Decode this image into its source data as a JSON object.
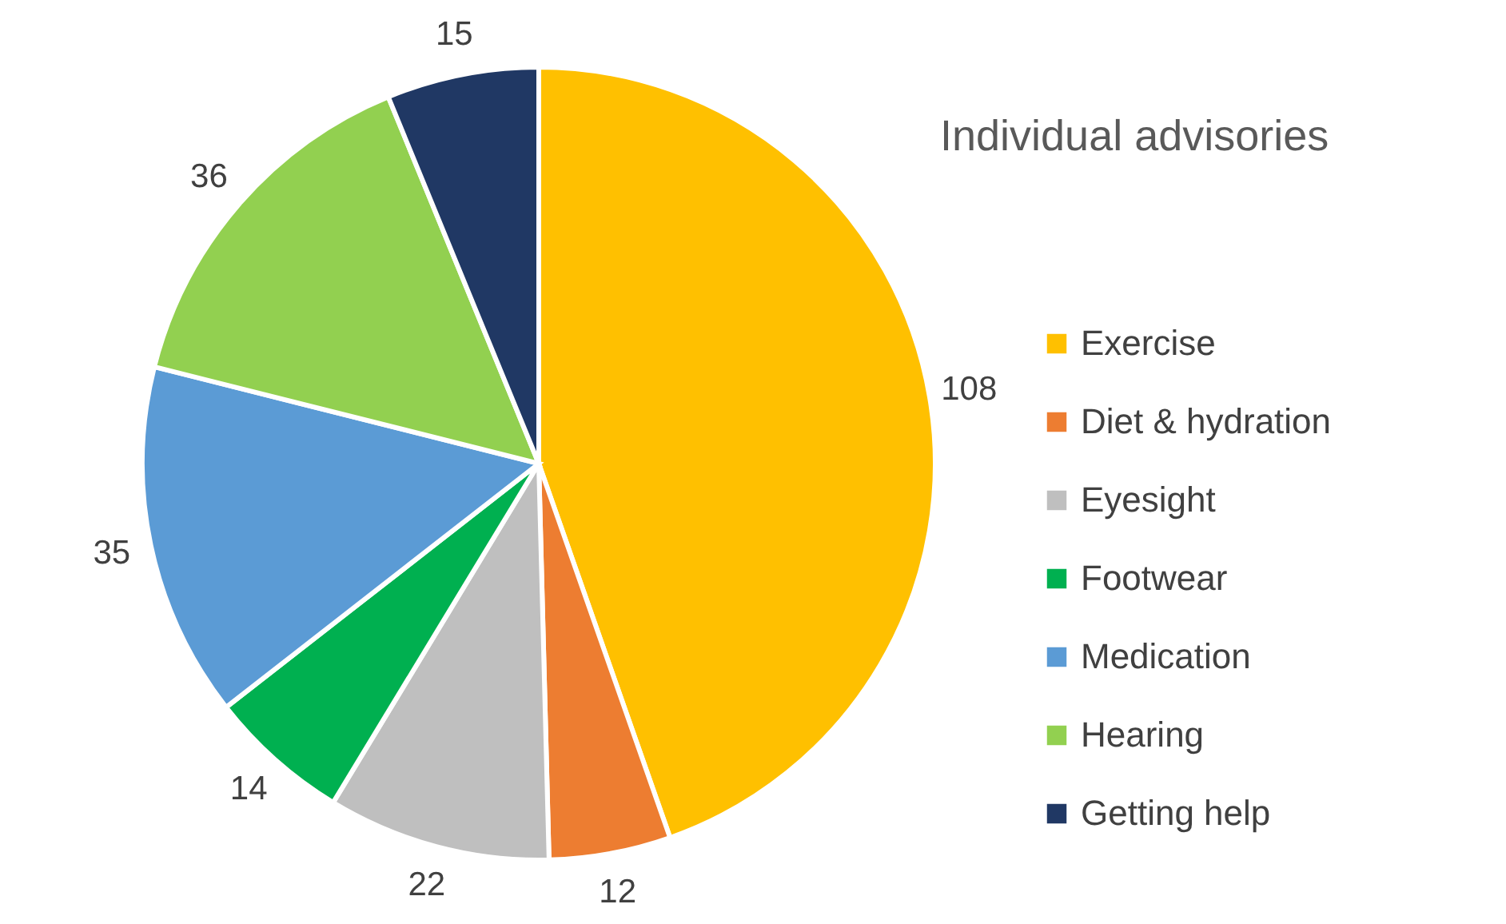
{
  "chart_data": {
    "type": "pie",
    "title": "Individual advisories",
    "categories": [
      "Exercise",
      "Diet & hydration",
      "Eyesight",
      "Footwear",
      "Medication",
      "Hearing",
      "Getting help"
    ],
    "values": [
      108,
      12,
      22,
      14,
      35,
      36,
      15
    ],
    "colors": [
      "#ffc000",
      "#ed7d31",
      "#bfbfbf",
      "#00b050",
      "#5b9bd5",
      "#92d050",
      "#203864"
    ],
    "data_labels": true,
    "legend": "right"
  }
}
